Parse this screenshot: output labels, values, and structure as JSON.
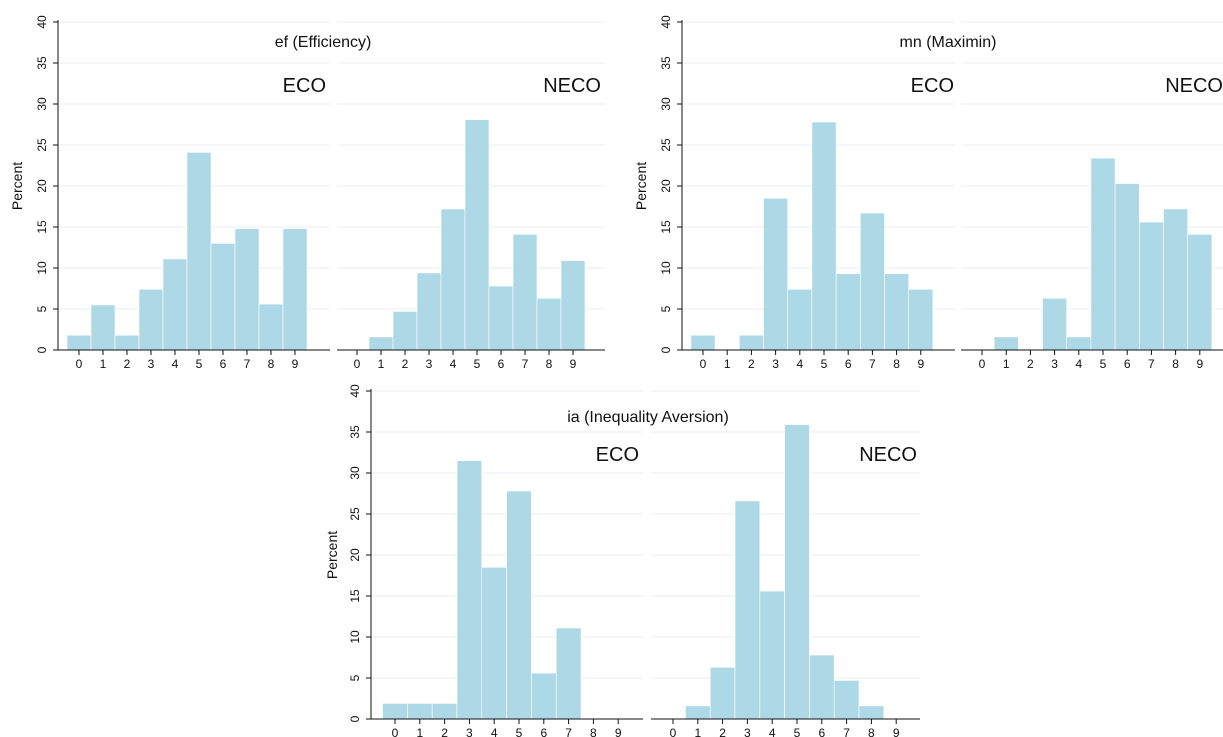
{
  "chart_data": [
    {
      "type": "bar",
      "title": "ef (Efficiency)",
      "ylabel": "Percent",
      "ylim": [
        0,
        40
      ],
      "yticks": [
        0,
        5,
        10,
        15,
        20,
        25,
        30,
        35,
        40
      ],
      "grid": true,
      "categories": [
        "0",
        "1",
        "2",
        "3",
        "4",
        "5",
        "6",
        "7",
        "8",
        "9"
      ],
      "series": [
        {
          "name": "ECO",
          "values": [
            1.8,
            5.5,
            1.8,
            7.4,
            11.1,
            24.1,
            13.0,
            14.8,
            5.6,
            14.8
          ]
        },
        {
          "name": "NECO",
          "values": [
            0,
            1.6,
            4.7,
            9.4,
            17.2,
            28.1,
            7.8,
            14.1,
            6.3,
            10.9
          ]
        }
      ]
    },
    {
      "type": "bar",
      "title": "mn (Maximin)",
      "ylabel": "Percent",
      "ylim": [
        0,
        40
      ],
      "yticks": [
        0,
        5,
        10,
        15,
        20,
        25,
        30,
        35,
        40
      ],
      "grid": true,
      "categories": [
        "0",
        "1",
        "2",
        "3",
        "4",
        "5",
        "6",
        "7",
        "8",
        "9"
      ],
      "series": [
        {
          "name": "ECO",
          "values": [
            1.8,
            0,
            1.8,
            18.5,
            7.4,
            27.8,
            9.3,
            16.7,
            9.3,
            7.4
          ]
        },
        {
          "name": "NECO",
          "values": [
            0,
            1.6,
            0,
            6.3,
            1.6,
            23.4,
            20.3,
            15.6,
            17.2,
            14.1
          ]
        }
      ]
    },
    {
      "type": "bar",
      "title": "ia (Inequality Aversion)",
      "ylabel": "Percent",
      "ylim": [
        0,
        40
      ],
      "yticks": [
        0,
        5,
        10,
        15,
        20,
        25,
        30,
        35,
        40
      ],
      "grid": true,
      "categories": [
        "0",
        "1",
        "2",
        "3",
        "4",
        "5",
        "6",
        "7",
        "8",
        "9"
      ],
      "series": [
        {
          "name": "ECO",
          "values": [
            1.9,
            1.9,
            1.9,
            31.5,
            18.5,
            27.8,
            5.6,
            11.1,
            0,
            0
          ]
        },
        {
          "name": "NECO",
          "values": [
            0,
            1.6,
            6.3,
            26.6,
            15.6,
            35.9,
            7.8,
            4.7,
            1.6,
            0
          ]
        }
      ]
    }
  ]
}
